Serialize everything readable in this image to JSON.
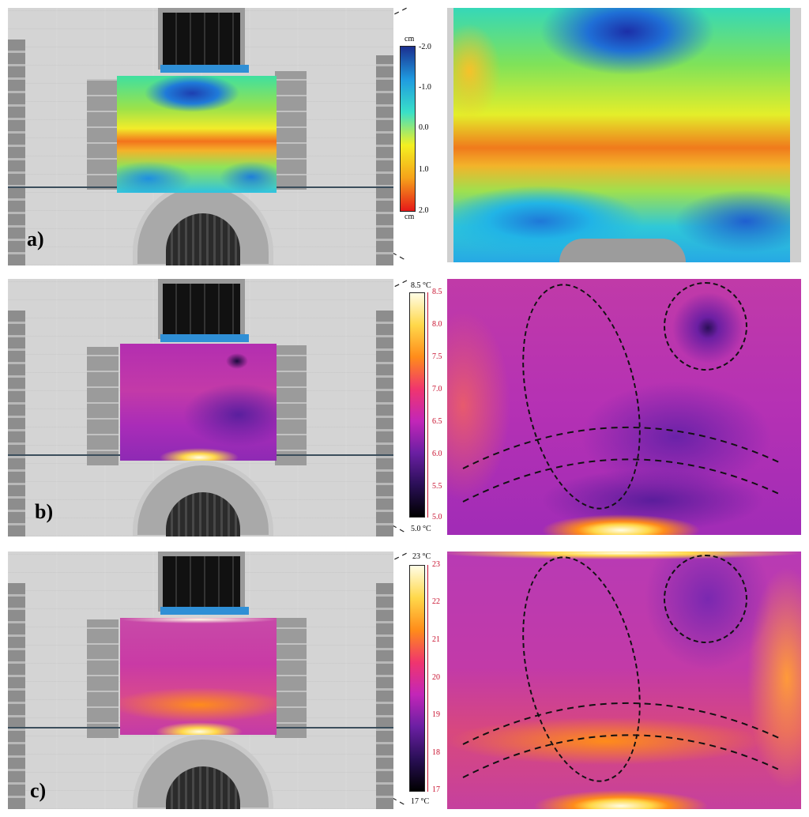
{
  "panels": [
    {
      "label": "a)",
      "scale": {
        "top_unit": "cm",
        "bottom_unit": "cm",
        "ticks": [
          "-2.0",
          "-1.0",
          "0.0",
          "1.0",
          "2.0"
        ],
        "colors": [
          "#1b2f8f",
          "#1f9be0",
          "#39e0c8",
          "#f3f021",
          "#f6a21a",
          "#e51919"
        ]
      }
    },
    {
      "label": "b)",
      "scale": {
        "top_unit": "8.5 °C",
        "bottom_unit": "5.0 °C",
        "ticks": [
          "8.5",
          "8.0",
          "7.5",
          "7.0",
          "6.5",
          "6.0",
          "5.5",
          "5.0"
        ],
        "colors": [
          "#fffde6",
          "#ffd84a",
          "#ff8c1a",
          "#f0356e",
          "#c326b8",
          "#6b1fa3",
          "#2a0f57",
          "#000000"
        ]
      }
    },
    {
      "label": "c)",
      "scale": {
        "top_unit": "23 °C",
        "bottom_unit": "17 °C",
        "ticks": [
          "23",
          "22",
          "21",
          "20",
          "19",
          "18",
          "17"
        ],
        "colors": [
          "#fffde6",
          "#ffd84a",
          "#ff8c1a",
          "#f0356e",
          "#c326b8",
          "#6b1fa3",
          "#2a0f57",
          "#000000"
        ]
      }
    }
  ]
}
